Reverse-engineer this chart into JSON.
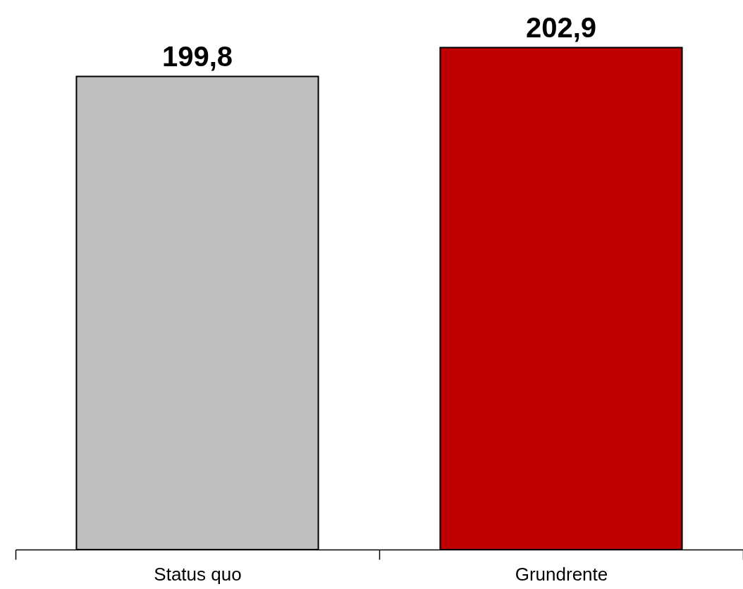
{
  "chart_data": {
    "type": "bar",
    "categories": [
      "Status quo",
      "Grundrente"
    ],
    "values": [
      199.8,
      202.9
    ],
    "colors": [
      "#bfbfbf",
      "#c00000"
    ],
    "value_labels": [
      "199,8",
      "202,9"
    ],
    "ylim": [
      149,
      208
    ],
    "grid": false
  }
}
